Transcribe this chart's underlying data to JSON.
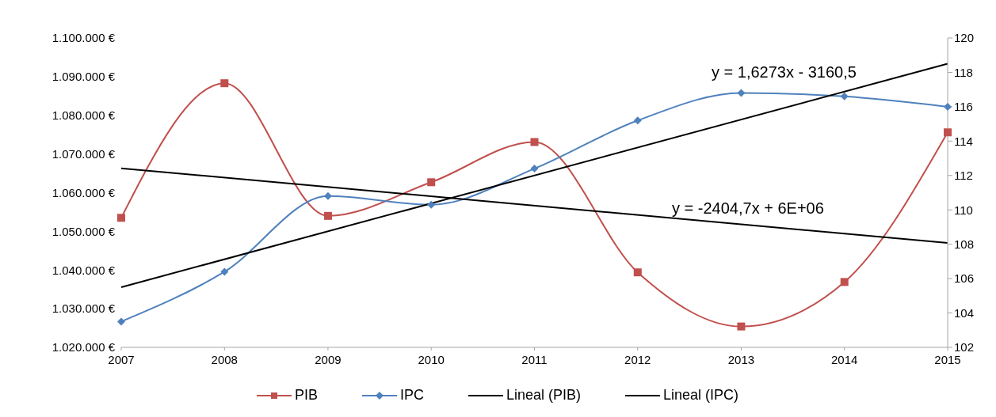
{
  "chart_data": {
    "type": "line",
    "x": [
      "2007",
      "2008",
      "2009",
      "2010",
      "2011",
      "2012",
      "2013",
      "2014",
      "2015"
    ],
    "xlim": [
      "2007",
      "2015"
    ],
    "xticks": [
      "2007",
      "2008",
      "2009",
      "2010",
      "2011",
      "2012",
      "2013",
      "2014",
      "2015"
    ],
    "ylim": [
      1020000,
      1100000
    ],
    "yticks": [
      {
        "value": 1020000,
        "label": "1.020.000 €"
      },
      {
        "value": 1030000,
        "label": "1.030.000 €"
      },
      {
        "value": 1040000,
        "label": "1.040.000 €"
      },
      {
        "value": 1050000,
        "label": "1.050.000 €"
      },
      {
        "value": 1060000,
        "label": "1.060.000 €"
      },
      {
        "value": 1070000,
        "label": "1.070.000 €"
      },
      {
        "value": 1080000,
        "label": "1.080.000 €"
      },
      {
        "value": 1090000,
        "label": "1.090.000 €"
      },
      {
        "value": 1100000,
        "label": "1.100.000 €"
      }
    ],
    "y2lim": [
      102,
      120
    ],
    "y2ticks": [
      102,
      104,
      106,
      108,
      110,
      112,
      114,
      116,
      118,
      120
    ],
    "grid": false,
    "legend": "bottom",
    "line_style": "solid",
    "series": [
      {
        "name": "PIB",
        "color": "#c0504d",
        "marker": "square",
        "values": [
          1053500,
          1088300,
          1054000,
          1062700,
          1073100,
          1039400,
          1025400,
          1036900,
          1075600
        ]
      },
      {
        "name": "IPC",
        "color": "#4f81bd",
        "marker": "diamond",
        "axis": "y2",
        "values": [
          103.5,
          106.4,
          110.8,
          110.3,
          112.4,
          115.2,
          116.8,
          116.6,
          116.0
        ]
      },
      {
        "name": "Lineal (PIB)",
        "color": "#000000",
        "marker": "none",
        "x": [
          "2007",
          "2015"
        ],
        "values": [
          1066300,
          1047000
        ]
      },
      {
        "name": "Lineal (IPC)",
        "color": "#000000",
        "marker": "none",
        "axis": "y2",
        "x": [
          "2007",
          "2015"
        ],
        "values": [
          105.5,
          118.5
        ]
      }
    ],
    "annotations": [
      "y = 1,6273x - 3160,5",
      "y = -2404,7x + 6E+06"
    ]
  }
}
